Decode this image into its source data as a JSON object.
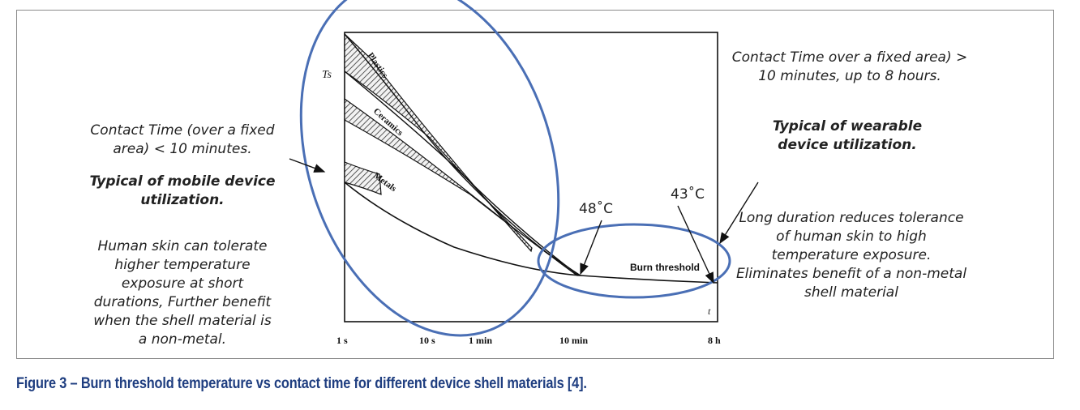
{
  "left_panel": {
    "contact_note": "Contact Time (over a fixed area) < 10 minutes.",
    "usage_heading": "Typical of mobile device utilization.",
    "tolerance_note": "Human skin can tolerate higher temperature exposure at short durations, Further benefit when the shell material is a non-metal."
  },
  "right_panel": {
    "contact_note": "Contact Time over a fixed area) > 10 minutes, up to 8 hours.",
    "usage_heading": "Typical of wearable device utilization.",
    "tolerance_note": "Long duration reduces tolerance of human skin to high temperature exposure. Eliminates benefit of a non-metal shell material"
  },
  "chart": {
    "y_axis_label": "Ts",
    "x_axis_label": "t",
    "x_ticks": [
      "1 s",
      "10 s",
      "1 min",
      "10 min",
      "8 h"
    ],
    "bands": [
      "Plastics",
      "Ceramics",
      "Metals"
    ],
    "curve_label": "Burn threshold",
    "callout_48": "48˚C",
    "callout_43": "43˚C"
  },
  "caption": "Figure 3 – Burn threshold temperature vs contact time for different device shell materials [4].",
  "colors": {
    "highlight_ellipse": "#4a6fb5",
    "caption": "#1f3e80",
    "axis": "#111111"
  }
}
